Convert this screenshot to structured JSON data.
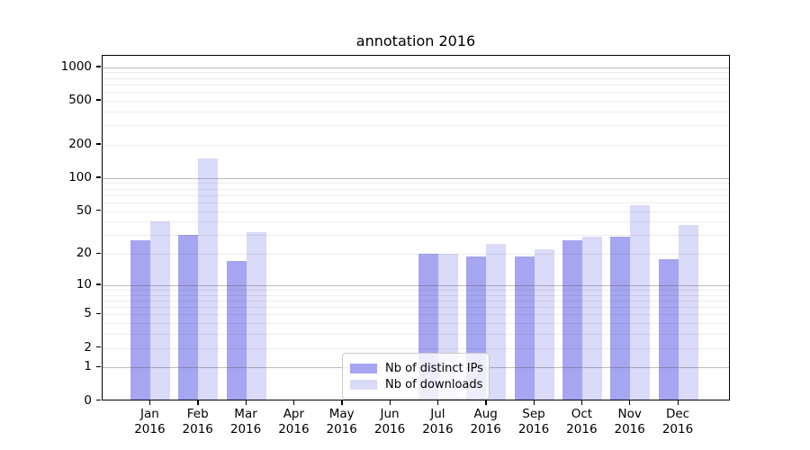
{
  "title": "annotation 2016",
  "legend": {
    "items": [
      {
        "label": "Nb of distinct IPs",
        "color": "#a5a5f1"
      },
      {
        "label": "Nb of downloads",
        "color": "#dadaf9"
      }
    ]
  },
  "chart_data": {
    "type": "bar",
    "title": "annotation 2016",
    "categories": [
      "Jan 2016",
      "Feb 2016",
      "Mar 2016",
      "Apr 2016",
      "May 2016",
      "Jun 2016",
      "Jul 2016",
      "Aug 2016",
      "Sep 2016",
      "Oct 2016",
      "Nov 2016",
      "Dec 2016"
    ],
    "series": [
      {
        "name": "Nb of distinct IPs",
        "color": "#a5a5f1",
        "values": [
          27,
          30,
          17,
          0,
          0,
          0,
          20,
          19,
          19,
          27,
          29,
          18
        ]
      },
      {
        "name": "Nb of downloads",
        "color": "#dadaf9",
        "values": [
          40,
          150,
          32,
          0,
          0,
          0,
          20,
          25,
          22,
          29,
          57,
          37
        ]
      }
    ],
    "xlabel": "",
    "ylabel": "",
    "yscale": "log1p",
    "ylim": [
      0,
      1260
    ],
    "yticks": [
      0,
      1,
      2,
      5,
      10,
      20,
      50,
      100,
      200,
      500,
      1000
    ],
    "ytick_major_gridlines": [
      1,
      10,
      100,
      1000
    ],
    "ytick_minor_gridlines": [
      2,
      3,
      4,
      5,
      6,
      7,
      8,
      9,
      20,
      30,
      40,
      50,
      60,
      70,
      80,
      90,
      200,
      300,
      400,
      500,
      600,
      700,
      800,
      900
    ],
    "grid": "on",
    "legend_position": "lower center"
  }
}
